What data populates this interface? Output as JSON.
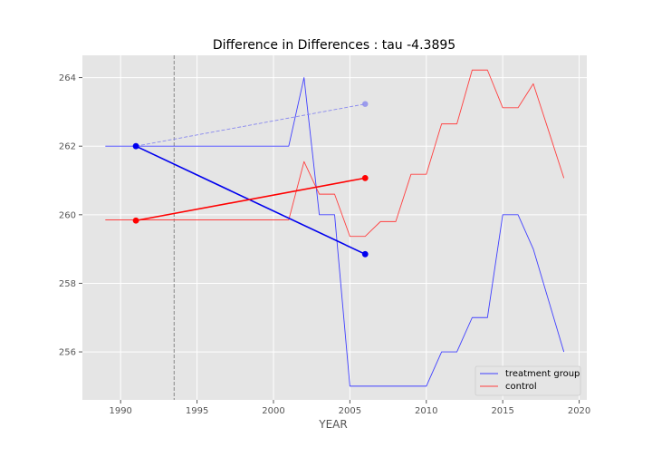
{
  "chart_data": {
    "type": "line",
    "title": "Difference in Differences : tau -4.3895",
    "xlabel": "YEAR",
    "ylabel": "",
    "xlim": [
      1987.5,
      2020.5
    ],
    "ylim": [
      254.6,
      264.65
    ],
    "xticks": [
      1990,
      1995,
      2000,
      2005,
      2010,
      2015,
      2020
    ],
    "yticks": [
      256,
      258,
      260,
      262,
      264
    ],
    "grid": true,
    "legend_position": "lower-right",
    "intervention_line": {
      "x": 1993.5,
      "style": "dashed",
      "color": "#888888"
    },
    "series": [
      {
        "name": "treatment group",
        "color": "#4040ff",
        "x": [
          1989,
          1990,
          1991,
          1992,
          1993,
          1994,
          1995,
          1996,
          1997,
          1998,
          1999,
          2000,
          2001,
          2002,
          2003,
          2004,
          2005,
          2006,
          2007,
          2008,
          2009,
          2010,
          2011,
          2012,
          2013,
          2014,
          2015,
          2016,
          2017,
          2018,
          2019
        ],
        "y": [
          262,
          262,
          262,
          262,
          262,
          262,
          262,
          262,
          262,
          262,
          262,
          262,
          262,
          264,
          260,
          260,
          255,
          255,
          255,
          255,
          255,
          255,
          256,
          256,
          257,
          257,
          260,
          260,
          259,
          257.5,
          256
        ]
      },
      {
        "name": "control",
        "color": "#ff4040",
        "x": [
          1989,
          1990,
          1991,
          1992,
          1993,
          1994,
          1995,
          1996,
          1997,
          1998,
          1999,
          2000,
          2001,
          2002,
          2003,
          2004,
          2005,
          2006,
          2007,
          2008,
          2009,
          2010,
          2011,
          2012,
          2013,
          2014,
          2015,
          2016,
          2017,
          2018,
          2019
        ],
        "y": [
          259.85,
          259.85,
          259.85,
          259.85,
          259.85,
          259.85,
          259.85,
          259.85,
          259.85,
          259.85,
          259.85,
          259.85,
          259.85,
          261.55,
          260.6,
          260.6,
          259.37,
          259.37,
          259.8,
          259.8,
          261.18,
          261.18,
          262.65,
          262.65,
          264.22,
          264.22,
          263.12,
          263.12,
          263.82,
          262.45,
          261.07
        ]
      }
    ],
    "markers": [
      {
        "from": [
          1991,
          262.0
        ],
        "to": [
          2006,
          258.85
        ],
        "color": "#0000ee",
        "style": "solid"
      },
      {
        "from": [
          1991,
          259.83
        ],
        "to": [
          2006,
          261.07
        ],
        "color": "#ff0000",
        "style": "solid"
      },
      {
        "from": [
          1991,
          262.0
        ],
        "to": [
          2006,
          263.23
        ],
        "color": "#8888ee",
        "style": "dashed"
      }
    ]
  }
}
